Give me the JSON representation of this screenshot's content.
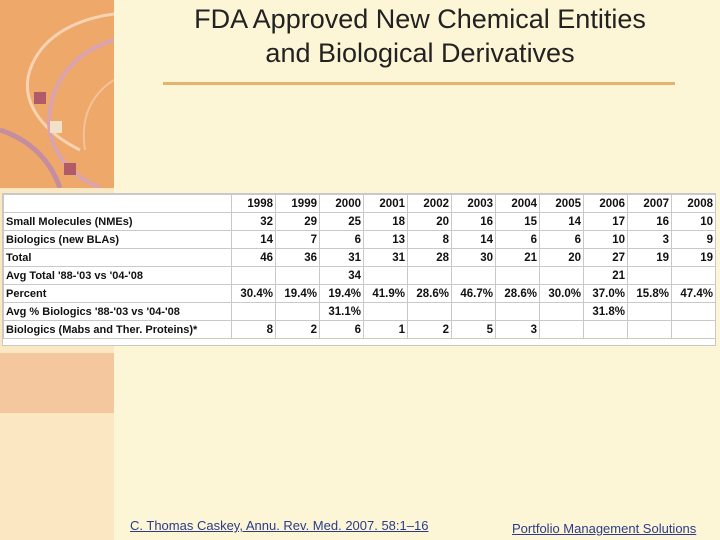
{
  "title": {
    "line1": "FDA Approved New Chemical Entities",
    "line2": "and Biological Derivatives"
  },
  "table": {
    "years": [
      "1998",
      "1999",
      "2000",
      "2001",
      "2002",
      "2003",
      "2004",
      "2005",
      "2006",
      "2007",
      "2008"
    ],
    "rows": [
      {
        "label": "Small Molecules (NMEs)",
        "cells": [
          "32",
          "29",
          "25",
          "18",
          "20",
          "16",
          "15",
          "14",
          "17",
          "16",
          "10"
        ]
      },
      {
        "label": "Biologics (new BLAs)",
        "cells": [
          "14",
          "7",
          "6",
          "13",
          "8",
          "14",
          "6",
          "6",
          "10",
          "3",
          "9"
        ]
      },
      {
        "label": "Total",
        "cells": [
          "46",
          "36",
          "31",
          "31",
          "28",
          "30",
          "21",
          "20",
          "27",
          "19",
          "19"
        ]
      },
      {
        "label": "Avg Total '88-'03 vs '04-'08",
        "cells": [
          "",
          "",
          "34",
          "",
          "",
          "",
          "",
          "",
          "21",
          "",
          ""
        ]
      },
      {
        "label": "Percent",
        "cells": [
          "30.4%",
          "19.4%",
          "19.4%",
          "41.9%",
          "28.6%",
          "46.7%",
          "28.6%",
          "30.0%",
          "37.0%",
          "15.8%",
          "47.4%"
        ]
      },
      {
        "label": "Avg % Biologics '88-'03 vs '04-'08",
        "cells": [
          "",
          "",
          "31.1%",
          "",
          "",
          "",
          "",
          "",
          "31.8%",
          "",
          ""
        ]
      },
      {
        "label": "Biologics (Mabs and Ther. Proteins)*",
        "cells": [
          "8",
          "2",
          "6",
          "1",
          "2",
          "5",
          "3",
          "",
          "",
          "",
          ""
        ]
      }
    ]
  },
  "footer": {
    "citation": "C. Thomas Caskey, Annu. Rev. Med. 2007. 58:1–16",
    "brand": "Portfolio Management Solutions"
  },
  "colors": {
    "background": "#fdf6d6",
    "accent_orange": "#eea86a",
    "link_blue": "#2b3b8a"
  }
}
